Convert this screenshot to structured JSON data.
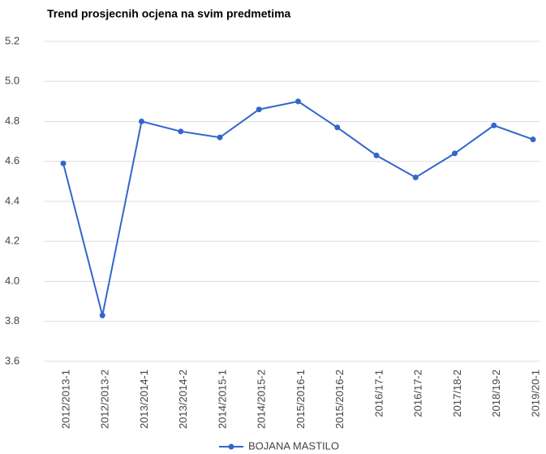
{
  "chart_data": {
    "type": "line",
    "title": "Trend prosjecnih ocjena na svim predmetima",
    "categories": [
      "2012/2013-1",
      "2012/2013-2",
      "2013/2014-1",
      "2013/2014-2",
      "2014/2015-1",
      "2014/2015-2",
      "2015/2016-1",
      "2015/2016-2",
      "2016/17-1",
      "2016/17-2",
      "2017/18-2",
      "2018/19-2",
      "2019/20-1"
    ],
    "series": [
      {
        "name": "BOJANA MASTILO",
        "color": "#3366cc",
        "values": [
          4.59,
          3.83,
          4.8,
          4.75,
          4.72,
          4.86,
          4.9,
          4.77,
          4.63,
          4.52,
          4.64,
          4.78,
          4.71
        ]
      }
    ],
    "ylim": [
      3.6,
      5.2
    ],
    "yticks": [
      3.6,
      3.8,
      {
        "value": 4,
        "label": "4.0"
      },
      4.2,
      4.4,
      4.6,
      4.8,
      {
        "value": 5,
        "label": "5.0"
      },
      5.2
    ],
    "grid": true,
    "legend": "bottom"
  }
}
